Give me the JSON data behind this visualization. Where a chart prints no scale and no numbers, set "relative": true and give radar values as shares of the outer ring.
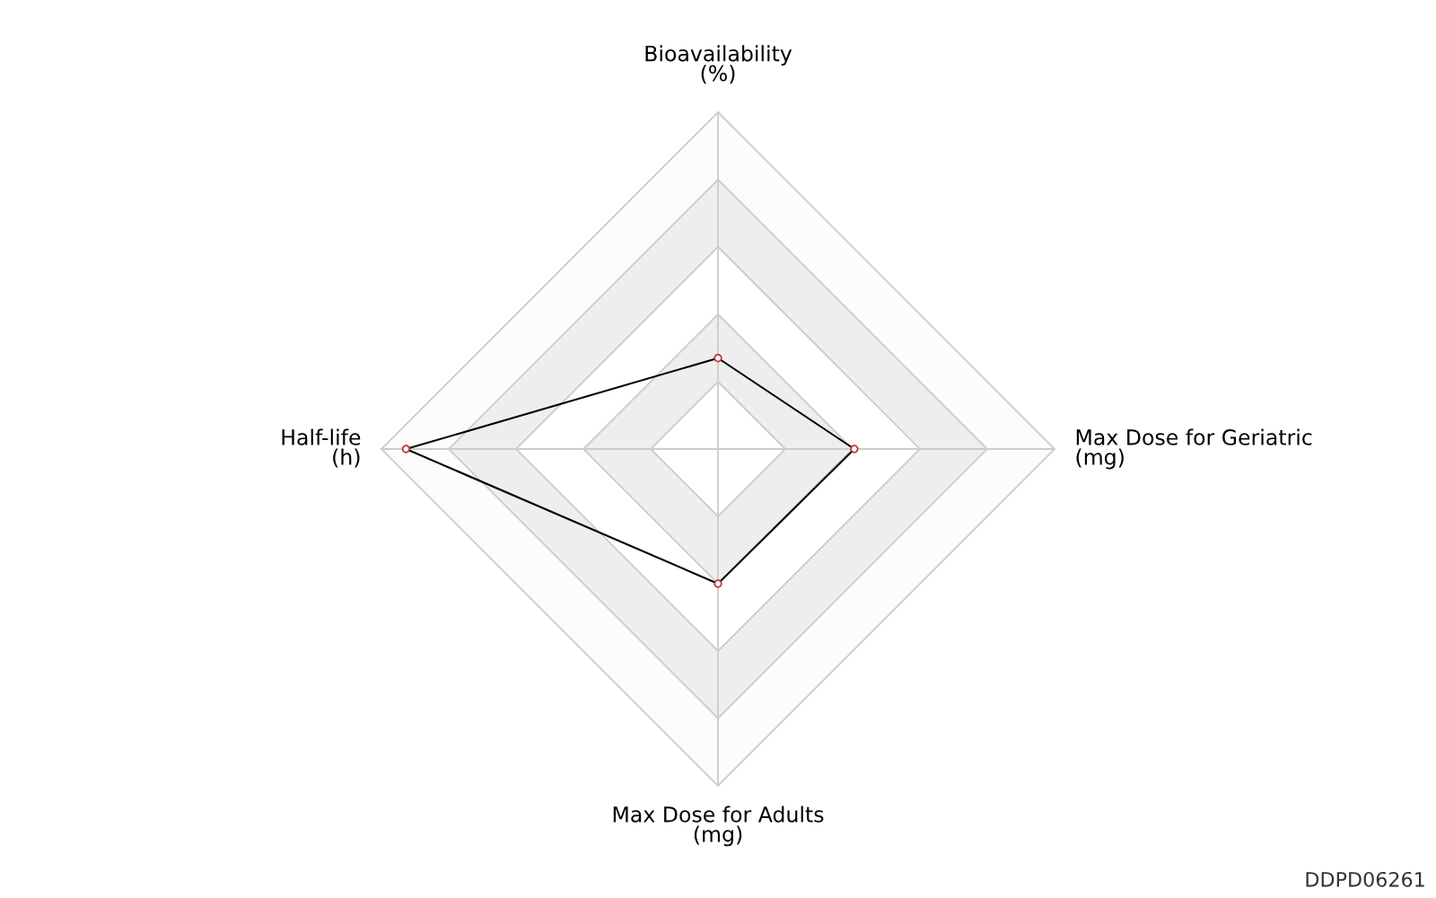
{
  "chart_data": {
    "type": "radar",
    "relative": true,
    "categories": [
      "Bioavailability\n(%)",
      "Max Dose for Geriatric\n(mg)",
      "Max Dose for Adults\n(mg)",
      "Half-life\n(h)"
    ],
    "series": [
      {
        "color": "#000000",
        "values": [
          0.27,
          0.405,
          0.4,
          0.927
        ]
      }
    ],
    "marker": "circle",
    "grid": true,
    "annotations": [
      "DDPD06261"
    ]
  }
}
